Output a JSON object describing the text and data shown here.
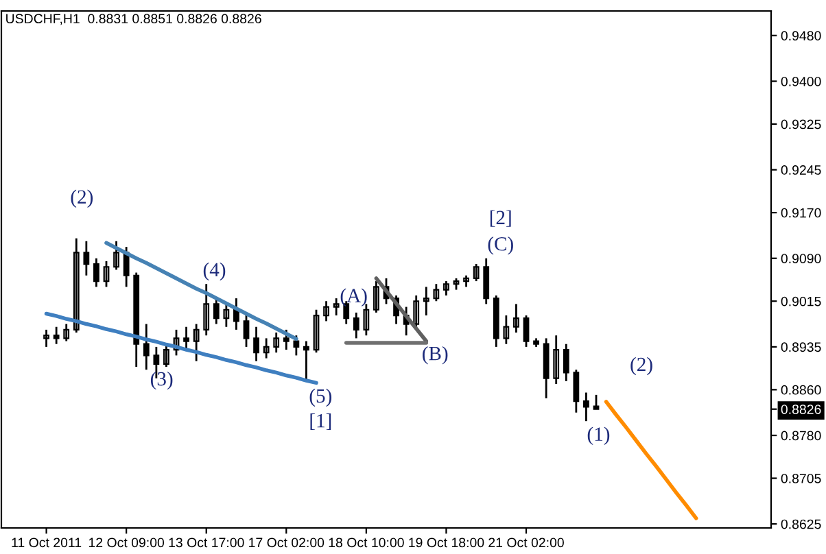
{
  "chart_data": {
    "type": "candlestick",
    "title": "USDCHF,H1  0.8831 0.8851 0.8826 0.8826",
    "categories": [
      "11 Oct 2011",
      null,
      null,
      null,
      null,
      null,
      null,
      null,
      "12 Oct 09:00",
      null,
      null,
      null,
      null,
      null,
      null,
      null,
      "13 Oct 17:00",
      null,
      null,
      null,
      null,
      null,
      null,
      null,
      "17 Oct 02:00",
      null,
      null,
      null,
      null,
      null,
      null,
      null,
      "18 Oct 10:00",
      null,
      null,
      null,
      null,
      null,
      null,
      null,
      "19 Oct 18:00",
      null,
      null,
      null,
      null,
      null,
      null,
      null,
      "21 Oct 02:00",
      null,
      null,
      null,
      null,
      null,
      null,
      null,
      null,
      null,
      null,
      null,
      null,
      null,
      null,
      null,
      null,
      null,
      null,
      null,
      null,
      null,
      null,
      null,
      null
    ],
    "series": [
      {
        "type": "candlestick",
        "color": "#000000",
        "ohlc": [
          [
            0.895,
            0.8965,
            0.8935,
            0.8955
          ],
          [
            0.8955,
            0.897,
            0.894,
            0.895
          ],
          [
            0.895,
            0.8975,
            0.8945,
            0.8965
          ],
          [
            0.8965,
            0.9125,
            0.896,
            0.91
          ],
          [
            0.91,
            0.912,
            0.906,
            0.908
          ],
          [
            0.908,
            0.909,
            0.904,
            0.905
          ],
          [
            0.905,
            0.9085,
            0.904,
            0.9075
          ],
          [
            0.9075,
            0.912,
            0.907,
            0.91
          ],
          [
            0.91,
            0.911,
            0.904,
            0.906
          ],
          [
            0.906,
            0.9065,
            0.89,
            0.894
          ],
          [
            0.894,
            0.8975,
            0.8895,
            0.892
          ],
          [
            0.892,
            0.8935,
            0.888,
            0.8905
          ],
          [
            0.8905,
            0.894,
            0.89,
            0.893
          ],
          [
            0.893,
            0.8965,
            0.892,
            0.895
          ],
          [
            0.895,
            0.897,
            0.893,
            0.8945
          ],
          [
            0.8945,
            0.8975,
            0.891,
            0.8965
          ],
          [
            0.8965,
            0.9045,
            0.8955,
            0.901
          ],
          [
            0.901,
            0.902,
            0.8975,
            0.8985
          ],
          [
            0.8985,
            0.901,
            0.897,
            0.9
          ],
          [
            0.9,
            0.902,
            0.8965,
            0.898
          ],
          [
            0.898,
            0.8995,
            0.8935,
            0.895
          ],
          [
            0.895,
            0.897,
            0.891,
            0.8925
          ],
          [
            0.8925,
            0.895,
            0.8915,
            0.8935
          ],
          [
            0.8935,
            0.896,
            0.8925,
            0.895
          ],
          [
            0.895,
            0.8965,
            0.893,
            0.8945
          ],
          [
            0.8945,
            0.8955,
            0.892,
            0.8935
          ],
          [
            0.8935,
            0.8945,
            0.8875,
            0.893
          ],
          [
            0.893,
            0.9,
            0.8925,
            0.899
          ],
          [
            0.899,
            0.9015,
            0.898,
            0.9005
          ],
          [
            0.9005,
            0.902,
            0.899,
            0.901
          ],
          [
            0.901,
            0.9015,
            0.8975,
            0.8985
          ],
          [
            0.8985,
            0.8995,
            0.895,
            0.8965
          ],
          [
            0.8965,
            0.901,
            0.8955,
            0.9
          ],
          [
            0.9,
            0.905,
            0.8995,
            0.904
          ],
          [
            0.904,
            0.9055,
            0.901,
            0.902
          ],
          [
            0.902,
            0.9025,
            0.8975,
            0.899
          ],
          [
            0.899,
            0.9005,
            0.8955,
            0.8975
          ],
          [
            0.8975,
            0.9025,
            0.897,
            0.9015
          ],
          [
            0.9015,
            0.904,
            0.899,
            0.902
          ],
          [
            0.902,
            0.9045,
            0.9015,
            0.9035
          ],
          [
            0.9035,
            0.905,
            0.9025,
            0.9045
          ],
          [
            0.9045,
            0.9055,
            0.9035,
            0.905
          ],
          [
            0.905,
            0.906,
            0.904,
            0.9055
          ],
          [
            0.9055,
            0.908,
            0.905,
            0.9075
          ],
          [
            0.9075,
            0.909,
            0.901,
            0.902
          ],
          [
            0.902,
            0.9025,
            0.8935,
            0.895
          ],
          [
            0.895,
            0.899,
            0.894,
            0.897
          ],
          [
            0.897,
            0.901,
            0.896,
            0.8985
          ],
          [
            0.8985,
            0.899,
            0.8935,
            0.8945
          ],
          [
            0.8945,
            0.895,
            0.8935,
            0.894
          ],
          [
            0.894,
            0.895,
            0.8845,
            0.888
          ],
          [
            0.888,
            0.8955,
            0.887,
            0.893
          ],
          [
            0.893,
            0.894,
            0.8875,
            0.889
          ],
          [
            0.889,
            0.8895,
            0.882,
            0.884
          ],
          [
            0.884,
            0.8855,
            0.8805,
            0.883
          ],
          [
            0.8831,
            0.8851,
            0.8826,
            0.8826
          ],
          null,
          null,
          null,
          null,
          null,
          null,
          null,
          null,
          null,
          null,
          null,
          null,
          null,
          null,
          null,
          null,
          null
        ]
      },
      {
        "type": "line",
        "color": "#4682b4",
        "values": [
          null,
          null,
          null,
          null,
          null,
          null,
          0.9117,
          0.9108,
          0.9099,
          0.909,
          0.9082,
          0.9073,
          0.9064,
          0.9055,
          0.9046,
          0.9037,
          0.9029,
          0.902,
          0.9011,
          0.9002,
          0.8993,
          0.8984,
          0.8976,
          0.8967,
          0.8958,
          0.8949,
          null,
          null,
          null,
          null,
          null,
          null,
          null,
          null,
          null,
          null,
          null,
          null,
          null,
          null,
          null,
          null,
          null,
          null,
          null,
          null,
          null,
          null,
          null,
          null,
          null,
          null,
          null,
          null,
          null,
          null,
          null,
          null,
          null,
          null,
          null,
          null,
          null,
          null,
          null,
          null,
          null,
          null,
          null,
          null,
          null,
          null,
          null
        ]
      },
      {
        "type": "line",
        "color": "#3f7fc0",
        "values": [
          0.8993,
          0.8989,
          0.8984,
          0.898,
          0.8975,
          0.8971,
          0.8966,
          0.8962,
          0.8957,
          0.8953,
          0.8948,
          0.8944,
          0.8939,
          0.8935,
          0.893,
          0.8926,
          0.8921,
          0.8917,
          0.8912,
          0.8908,
          0.8903,
          0.8899,
          0.8894,
          0.889,
          0.8885,
          0.8881,
          0.8876,
          0.8872,
          null,
          null,
          null,
          null,
          null,
          null,
          null,
          null,
          null,
          null,
          null,
          null,
          null,
          null,
          null,
          null,
          null,
          null,
          null,
          null,
          null,
          null,
          null,
          null,
          null,
          null,
          null,
          null,
          null,
          null,
          null,
          null,
          null,
          null,
          null,
          null,
          null,
          null,
          null,
          null,
          null,
          null,
          null,
          null,
          null
        ]
      },
      {
        "type": "line",
        "color": "#606060",
        "values": [
          null,
          null,
          null,
          null,
          null,
          null,
          null,
          null,
          null,
          null,
          null,
          null,
          null,
          null,
          null,
          null,
          null,
          null,
          null,
          null,
          null,
          null,
          null,
          null,
          null,
          null,
          null,
          null,
          null,
          null,
          null,
          null,
          null,
          0.9055,
          0.9033,
          0.9011,
          0.8989,
          0.8967,
          0.8945,
          null,
          null,
          null,
          null,
          null,
          null,
          null,
          null,
          null,
          null,
          null,
          null,
          null,
          null,
          null,
          null,
          null,
          null,
          null,
          null,
          null,
          null,
          null,
          null,
          null,
          null,
          null,
          null,
          null,
          null,
          null,
          null,
          null,
          null
        ]
      },
      {
        "type": "line",
        "color": "#707070",
        "values": [
          null,
          null,
          null,
          null,
          null,
          null,
          null,
          null,
          null,
          null,
          null,
          null,
          null,
          null,
          null,
          null,
          null,
          null,
          null,
          null,
          null,
          null,
          null,
          null,
          null,
          null,
          null,
          null,
          null,
          null,
          0.8942,
          0.8942,
          0.8942,
          0.8942,
          0.8942,
          0.8942,
          0.8942,
          0.8942,
          0.8942,
          null,
          null,
          null,
          null,
          null,
          null,
          null,
          null,
          null,
          null,
          null,
          null,
          null,
          null,
          null,
          null,
          null,
          null,
          null,
          null,
          null,
          null,
          null,
          null,
          null,
          null,
          null,
          null,
          null,
          null,
          null,
          null,
          null,
          null
        ]
      },
      {
        "type": "line",
        "color": "#ff8c00",
        "values": [
          null,
          null,
          null,
          null,
          null,
          null,
          null,
          null,
          null,
          null,
          null,
          null,
          null,
          null,
          null,
          null,
          null,
          null,
          null,
          null,
          null,
          null,
          null,
          null,
          null,
          null,
          null,
          null,
          null,
          null,
          null,
          null,
          null,
          null,
          null,
          null,
          null,
          null,
          null,
          null,
          null,
          null,
          null,
          null,
          null,
          null,
          null,
          null,
          null,
          null,
          null,
          null,
          null,
          null,
          null,
          null,
          0.8839,
          0.8816,
          0.8794,
          0.8771,
          0.8748,
          0.8726,
          0.8703,
          0.868,
          0.8658,
          0.8635,
          null,
          null,
          null,
          null,
          null,
          null,
          null
        ]
      }
    ],
    "ylim": [
      0.8618,
      0.9523
    ],
    "yticks": [
      {
        "value": 0.8625,
        "label": "0.8625"
      },
      {
        "value": 0.8705,
        "label": "0.8705"
      },
      {
        "value": 0.878,
        "label": "0.8780"
      },
      {
        "value": 0.8826,
        "label": "0.8826"
      },
      {
        "value": 0.886,
        "label": "0.8860"
      },
      {
        "value": 0.8935,
        "label": "0.8935"
      },
      {
        "value": 0.9015,
        "label": "0.9015"
      },
      {
        "value": 0.909,
        "label": "0.9090"
      },
      {
        "value": 0.917,
        "label": "0.9170"
      },
      {
        "value": 0.9245,
        "label": "0.9245"
      },
      {
        "value": 0.9325,
        "label": "0.9325"
      },
      {
        "value": 0.94,
        "label": "0.9400"
      },
      {
        "value": 0.948,
        "label": "0.9480"
      }
    ],
    "annotations": [
      "(2)",
      "(3)",
      "(4)",
      "(5)",
      "[1]",
      "(A)",
      "(B)",
      "(C)",
      "[2]",
      "(1)",
      "(2)"
    ],
    "grid": false,
    "legend": false
  }
}
